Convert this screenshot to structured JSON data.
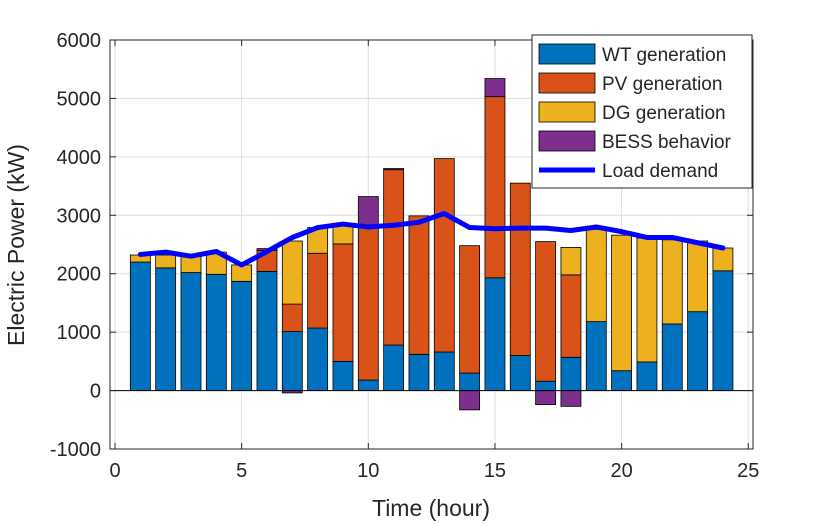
{
  "chart_data": {
    "type": "bar",
    "stacked": true,
    "xlabel": "Time (hour)",
    "ylabel": "Electric Power (kW)",
    "xlim": [
      0,
      25
    ],
    "ylim": [
      -1000,
      6000
    ],
    "xticks": [
      0,
      5,
      10,
      15,
      20,
      25
    ],
    "yticks": [
      -1000,
      0,
      1000,
      2000,
      3000,
      4000,
      5000,
      6000
    ],
    "grid": true,
    "legend_location": "top-right",
    "x": [
      1,
      2,
      3,
      4,
      5,
      6,
      7,
      8,
      9,
      10,
      11,
      12,
      13,
      14,
      15,
      16,
      17,
      18,
      19,
      20,
      21,
      22,
      23,
      24
    ],
    "series": [
      {
        "name": "WT generation",
        "color": "#0072BD",
        "values": [
          2200,
          2100,
          2020,
          1990,
          1870,
          2040,
          1010,
          1070,
          500,
          180,
          780,
          620,
          660,
          300,
          1930,
          600,
          160,
          570,
          1180,
          340,
          490,
          1140,
          1350,
          2050
        ]
      },
      {
        "name": "PV generation",
        "color": "#D95319",
        "values": [
          0,
          0,
          0,
          0,
          0,
          360,
          470,
          1280,
          2010,
          2650,
          3000,
          2370,
          3310,
          2180,
          3100,
          2950,
          2390,
          1410,
          0,
          0,
          0,
          0,
          0,
          0
        ]
      },
      {
        "name": "DG generation",
        "color": "#EDB120",
        "values": [
          120,
          220,
          290,
          380,
          280,
          0,
          1080,
          440,
          320,
          0,
          0,
          0,
          0,
          0,
          0,
          0,
          0,
          470,
          1580,
          2320,
          2120,
          1440,
          1210,
          390
        ]
      },
      {
        "name": "BESS behavior",
        "color": "#7E2F8E",
        "values": [
          0,
          0,
          0,
          0,
          0,
          30,
          -40,
          0,
          0,
          490,
          20,
          0,
          0,
          -330,
          310,
          0,
          -240,
          -270,
          0,
          0,
          0,
          0,
          0,
          0
        ]
      }
    ],
    "line_series": {
      "name": "Load demand",
      "color": "#0000FF",
      "values": [
        2330,
        2370,
        2300,
        2380,
        2150,
        2380,
        2620,
        2790,
        2850,
        2800,
        2830,
        2880,
        3030,
        2790,
        2770,
        2780,
        2780,
        2740,
        2800,
        2720,
        2620,
        2620,
        2530,
        2440
      ]
    }
  }
}
